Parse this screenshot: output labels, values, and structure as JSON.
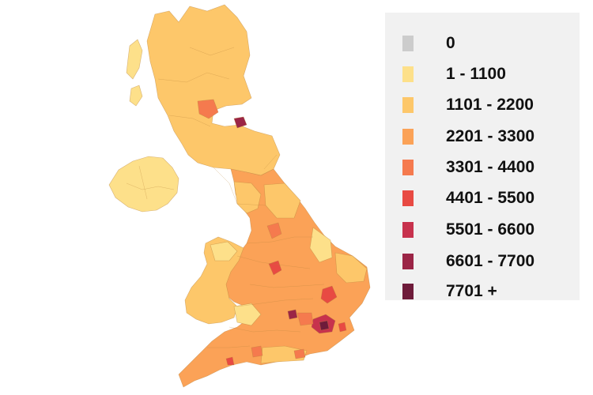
{
  "legend": {
    "items": [
      {
        "label": "0",
        "color": "#cccccc"
      },
      {
        "label": "1 - 1100",
        "color": "#fde08a"
      },
      {
        "label": "1101 - 2200",
        "color": "#fdc76a"
      },
      {
        "label": "2201 - 3300",
        "color": "#fba257"
      },
      {
        "label": "3301 - 4400",
        "color": "#f57a4e"
      },
      {
        "label": "4401 - 5500",
        "color": "#e84a43"
      },
      {
        "label": "5501 - 6600",
        "color": "#c7324d"
      },
      {
        "label": "6601 - 7700",
        "color": "#9b2546"
      },
      {
        "label": "7701 +",
        "color": "#6e1b3a"
      }
    ]
  }
}
